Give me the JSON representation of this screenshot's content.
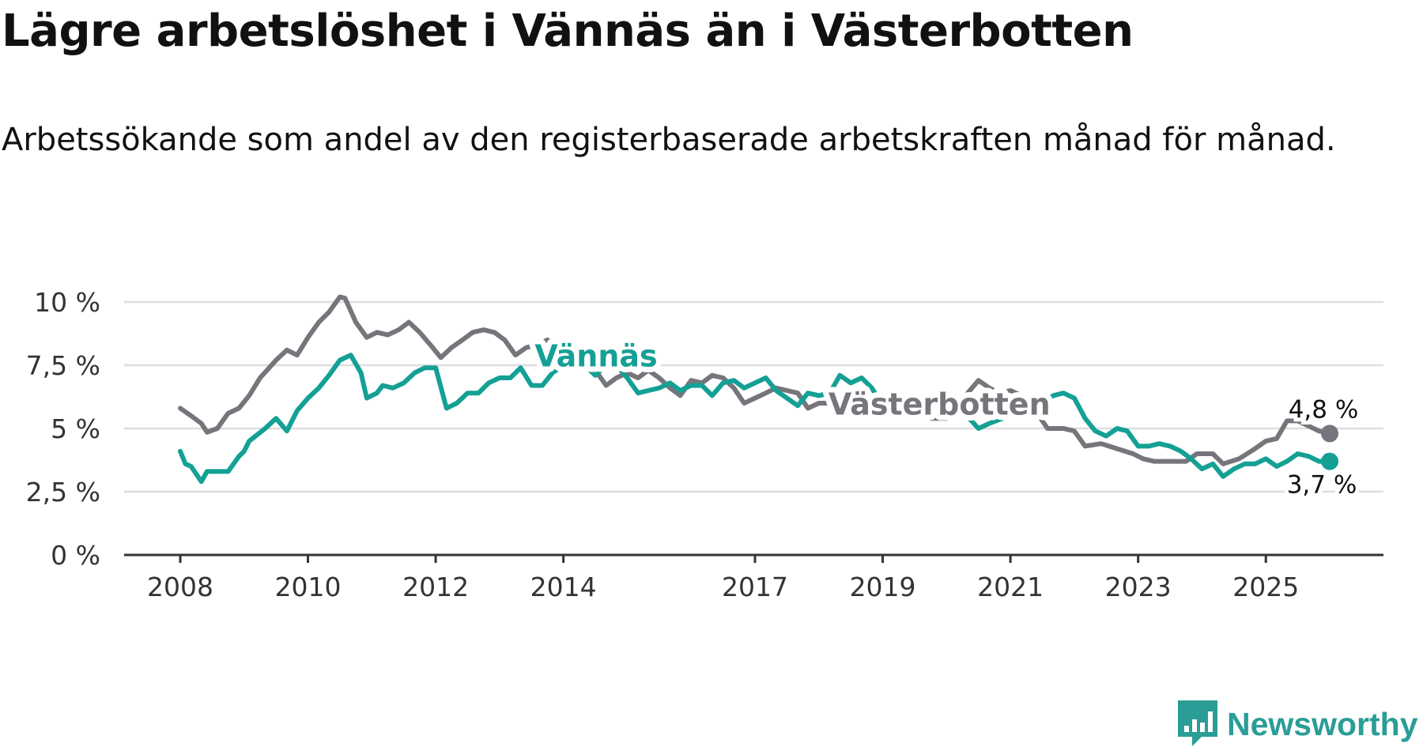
{
  "title": "Lägre arbetslöshet i Vännäs än i Västerbotten",
  "subtitle": "Arbetssökande som andel av den registerbaserade arbetskraften månad för månad.",
  "brand": {
    "name": "Newsworthy",
    "logo_icon": "bar-chart-badge-icon"
  },
  "colors": {
    "vannas": "#14a095",
    "vasterbotten": "#76757b",
    "grid": "#dedede",
    "axis": "#333333"
  },
  "chart_data": {
    "type": "line",
    "title": "Lägre arbetslöshet i Vännäs än i Västerbotten",
    "xlabel": "",
    "ylabel": "",
    "ylim": [
      0,
      10
    ],
    "xlim": [
      2008.0,
      2026.0
    ],
    "y_ticks": [
      0,
      2.5,
      5,
      7.5,
      10
    ],
    "y_tick_labels": [
      "0 %",
      "2,5 %",
      "5 %",
      "7,5 %",
      "10 %"
    ],
    "x_ticks": [
      2008,
      2010,
      2012,
      2014,
      2017,
      2019,
      2021,
      2023,
      2025
    ],
    "x_tick_labels": [
      "2008",
      "2010",
      "2012",
      "2014",
      "2017",
      "2019",
      "2021",
      "2023",
      "2025"
    ],
    "series": [
      {
        "name": "Västerbotten",
        "color": "#76757b",
        "label": "Västerbotten",
        "end_label": "4,8 %",
        "end_value": 4.8,
        "points": [
          [
            2008.0,
            5.8
          ],
          [
            2008.17,
            5.5
          ],
          [
            2008.33,
            5.2
          ],
          [
            2008.42,
            4.85
          ],
          [
            2008.58,
            5.0
          ],
          [
            2008.75,
            5.6
          ],
          [
            2008.92,
            5.8
          ],
          [
            2009.08,
            6.3
          ],
          [
            2009.25,
            7.0
          ],
          [
            2009.5,
            7.7
          ],
          [
            2009.67,
            8.1
          ],
          [
            2009.83,
            7.9
          ],
          [
            2010.0,
            8.6
          ],
          [
            2010.17,
            9.2
          ],
          [
            2010.33,
            9.6
          ],
          [
            2010.5,
            10.2
          ],
          [
            2010.58,
            10.15
          ],
          [
            2010.75,
            9.2
          ],
          [
            2010.92,
            8.6
          ],
          [
            2011.08,
            8.8
          ],
          [
            2011.25,
            8.7
          ],
          [
            2011.42,
            8.9
          ],
          [
            2011.58,
            9.2
          ],
          [
            2011.75,
            8.8
          ],
          [
            2011.92,
            8.3
          ],
          [
            2012.08,
            7.8
          ],
          [
            2012.25,
            8.2
          ],
          [
            2012.42,
            8.5
          ],
          [
            2012.58,
            8.8
          ],
          [
            2012.75,
            8.9
          ],
          [
            2012.92,
            8.8
          ],
          [
            2013.08,
            8.5
          ],
          [
            2013.25,
            7.9
          ],
          [
            2013.42,
            8.2
          ],
          [
            2013.58,
            8.3
          ],
          [
            2013.75,
            8.5
          ],
          [
            2014.17,
            7.8
          ],
          [
            2014.5,
            7.3
          ],
          [
            2014.67,
            6.7
          ],
          [
            2014.83,
            7.0
          ],
          [
            2015.0,
            7.2
          ],
          [
            2015.17,
            7.0
          ],
          [
            2015.33,
            7.3
          ],
          [
            2015.5,
            7.0
          ],
          [
            2015.67,
            6.6
          ],
          [
            2015.83,
            6.3
          ],
          [
            2016.0,
            6.9
          ],
          [
            2016.17,
            6.8
          ],
          [
            2016.33,
            7.1
          ],
          [
            2016.5,
            7.0
          ],
          [
            2016.67,
            6.6
          ],
          [
            2016.83,
            6.0
          ],
          [
            2017.0,
            6.2
          ],
          [
            2017.17,
            6.4
          ],
          [
            2017.33,
            6.6
          ],
          [
            2017.5,
            6.5
          ],
          [
            2017.67,
            6.4
          ],
          [
            2017.83,
            5.8
          ],
          [
            2018.0,
            6.0
          ],
          [
            2018.17,
            6.0
          ],
          [
            2018.5,
            6.3
          ],
          [
            2019.25,
            5.9
          ],
          [
            2019.5,
            5.6
          ],
          [
            2019.75,
            5.4
          ],
          [
            2020.0,
            5.4
          ],
          [
            2020.33,
            6.4
          ],
          [
            2020.5,
            6.9
          ],
          [
            2020.67,
            6.6
          ],
          [
            2020.83,
            6.4
          ],
          [
            2021.0,
            6.5
          ],
          [
            2021.17,
            6.3
          ],
          [
            2021.42,
            5.6
          ],
          [
            2021.58,
            5.0
          ],
          [
            2021.83,
            5.0
          ],
          [
            2022.0,
            4.9
          ],
          [
            2022.17,
            4.3
          ],
          [
            2022.42,
            4.4
          ],
          [
            2022.67,
            4.2
          ],
          [
            2022.92,
            4.0
          ],
          [
            2023.08,
            3.8
          ],
          [
            2023.25,
            3.7
          ],
          [
            2023.5,
            3.7
          ],
          [
            2023.75,
            3.7
          ],
          [
            2023.92,
            4.0
          ],
          [
            2024.17,
            4.0
          ],
          [
            2024.33,
            3.6
          ],
          [
            2024.58,
            3.8
          ],
          [
            2024.83,
            4.2
          ],
          [
            2025.0,
            4.5
          ],
          [
            2025.17,
            4.6
          ],
          [
            2025.33,
            5.3
          ],
          [
            2025.5,
            5.3
          ],
          [
            2025.67,
            5.1
          ],
          [
            2025.83,
            4.9
          ],
          [
            2026.0,
            4.8
          ]
        ]
      },
      {
        "name": "Vännäs",
        "color": "#14a095",
        "label": "Vännäs",
        "end_label": "3,7 %",
        "end_value": 3.7,
        "points": [
          [
            2008.0,
            4.1
          ],
          [
            2008.08,
            3.6
          ],
          [
            2008.17,
            3.5
          ],
          [
            2008.33,
            2.9
          ],
          [
            2008.42,
            3.3
          ],
          [
            2008.58,
            3.3
          ],
          [
            2008.75,
            3.3
          ],
          [
            2008.92,
            3.9
          ],
          [
            2009.0,
            4.1
          ],
          [
            2009.08,
            4.5
          ],
          [
            2009.33,
            5.0
          ],
          [
            2009.5,
            5.4
          ],
          [
            2009.67,
            4.9
          ],
          [
            2009.83,
            5.7
          ],
          [
            2010.0,
            6.2
          ],
          [
            2010.17,
            6.6
          ],
          [
            2010.33,
            7.1
          ],
          [
            2010.5,
            7.7
          ],
          [
            2010.67,
            7.9
          ],
          [
            2010.83,
            7.2
          ],
          [
            2010.92,
            6.2
          ],
          [
            2011.08,
            6.4
          ],
          [
            2011.17,
            6.7
          ],
          [
            2011.33,
            6.6
          ],
          [
            2011.5,
            6.8
          ],
          [
            2011.67,
            7.2
          ],
          [
            2011.83,
            7.4
          ],
          [
            2012.0,
            7.4
          ],
          [
            2012.17,
            5.8
          ],
          [
            2012.33,
            6.0
          ],
          [
            2012.5,
            6.4
          ],
          [
            2012.67,
            6.4
          ],
          [
            2012.83,
            6.8
          ],
          [
            2013.0,
            7.0
          ],
          [
            2013.17,
            7.0
          ],
          [
            2013.33,
            7.4
          ],
          [
            2013.5,
            6.7
          ],
          [
            2013.67,
            6.7
          ],
          [
            2013.83,
            7.2
          ],
          [
            2014.0,
            7.5
          ],
          [
            2014.17,
            7.7
          ],
          [
            2014.33,
            7.5
          ],
          [
            2014.5,
            7.1
          ],
          [
            2014.67,
            7.5
          ],
          [
            2014.83,
            7.5
          ],
          [
            2015.0,
            7.0
          ],
          [
            2015.17,
            6.4
          ],
          [
            2015.33,
            6.5
          ],
          [
            2015.5,
            6.6
          ],
          [
            2015.67,
            6.8
          ],
          [
            2015.83,
            6.5
          ],
          [
            2016.0,
            6.7
          ],
          [
            2016.17,
            6.7
          ],
          [
            2016.33,
            6.3
          ],
          [
            2016.5,
            6.8
          ],
          [
            2016.67,
            6.9
          ],
          [
            2016.83,
            6.6
          ],
          [
            2017.0,
            6.8
          ],
          [
            2017.17,
            7.0
          ],
          [
            2017.33,
            6.5
          ],
          [
            2017.5,
            6.2
          ],
          [
            2017.67,
            5.9
          ],
          [
            2017.83,
            6.4
          ],
          [
            2018.0,
            6.3
          ],
          [
            2018.17,
            6.4
          ],
          [
            2018.33,
            7.1
          ],
          [
            2018.5,
            6.8
          ],
          [
            2018.67,
            7.0
          ],
          [
            2018.83,
            6.6
          ],
          [
            2019.0,
            5.9
          ],
          [
            2019.17,
            6.3
          ],
          [
            2019.33,
            6.1
          ],
          [
            2019.5,
            6.2
          ],
          [
            2019.67,
            6.3
          ],
          [
            2020.17,
            5.9
          ],
          [
            2020.5,
            5.0
          ],
          [
            2020.67,
            5.2
          ],
          [
            2021.5,
            6.0
          ],
          [
            2021.67,
            6.3
          ],
          [
            2021.83,
            6.4
          ],
          [
            2022.0,
            6.2
          ],
          [
            2022.17,
            5.4
          ],
          [
            2022.33,
            4.9
          ],
          [
            2022.5,
            4.7
          ],
          [
            2022.67,
            5.0
          ],
          [
            2022.83,
            4.9
          ],
          [
            2023.0,
            4.3
          ],
          [
            2023.17,
            4.3
          ],
          [
            2023.33,
            4.4
          ],
          [
            2023.5,
            4.3
          ],
          [
            2023.67,
            4.1
          ],
          [
            2023.83,
            3.8
          ],
          [
            2024.0,
            3.4
          ],
          [
            2024.17,
            3.6
          ],
          [
            2024.33,
            3.1
          ],
          [
            2024.5,
            3.4
          ],
          [
            2024.67,
            3.6
          ],
          [
            2024.83,
            3.6
          ],
          [
            2025.0,
            3.8
          ],
          [
            2025.17,
            3.5
          ],
          [
            2025.33,
            3.7
          ],
          [
            2025.5,
            4.0
          ],
          [
            2025.67,
            3.9
          ],
          [
            2025.83,
            3.7
          ],
          [
            2026.0,
            3.7
          ]
        ]
      }
    ]
  }
}
